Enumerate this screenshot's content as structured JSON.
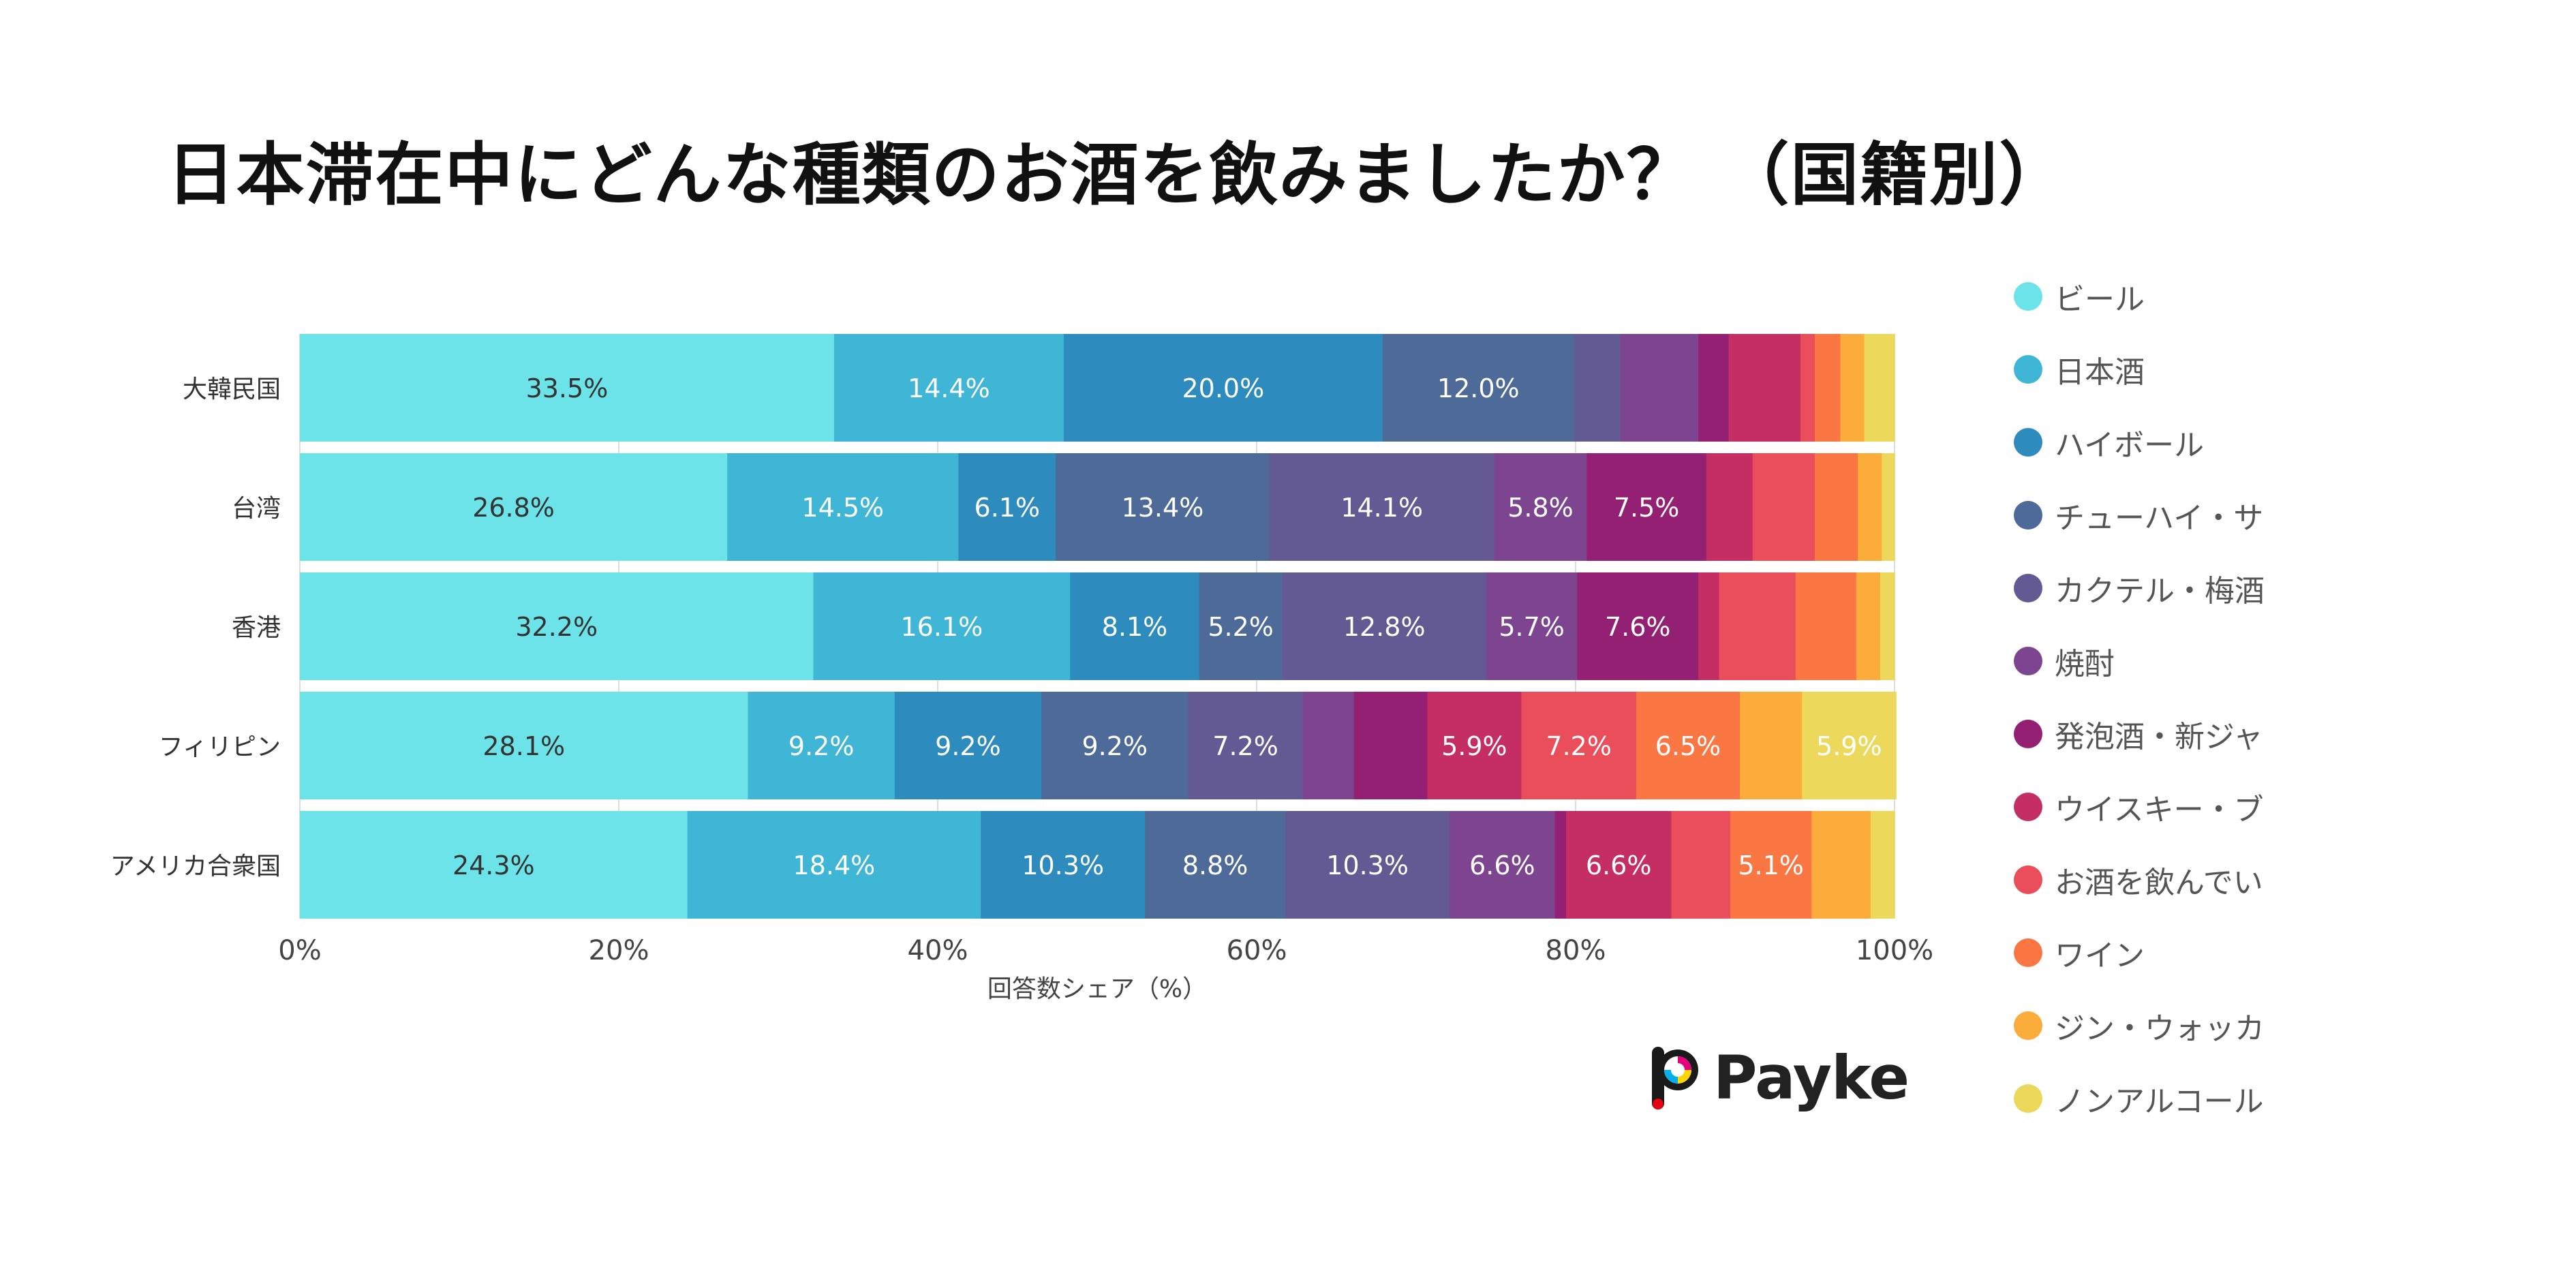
{
  "title": "日本滞在中にどんな種類のお酒を飲みましたか？ （国籍別）",
  "logo_text": "Payke",
  "chart_data": {
    "type": "bar",
    "orientation": "horizontal",
    "stacked": true,
    "title": "日本滞在中にどんな種類のお酒を飲みましたか？ （国籍別）",
    "xlabel": "回答数シェア（%）",
    "ylabel": "",
    "xlim": [
      0,
      100
    ],
    "xticks": [
      "0%",
      "20%",
      "40%",
      "60%",
      "80%",
      "100%"
    ],
    "grid": true,
    "legend_position": "right",
    "categories": [
      "大韓民国",
      "台湾",
      "香港",
      "フィリピン",
      "アメリカ合衆国"
    ],
    "series": [
      {
        "name": "ビール",
        "color": "#6ce3e8",
        "values": [
          33.5,
          26.8,
          32.2,
          28.1,
          24.3
        ]
      },
      {
        "name": "日本酒",
        "color": "#40b6d6",
        "values": [
          14.4,
          14.5,
          16.1,
          9.2,
          18.4
        ]
      },
      {
        "name": "ハイボール",
        "color": "#2e8bbd",
        "values": [
          20.0,
          6.1,
          8.1,
          9.2,
          10.3
        ]
      },
      {
        "name": "チューハイ・サ",
        "color": "#4d6a98",
        "values": [
          12.0,
          13.4,
          5.2,
          9.2,
          8.8
        ]
      },
      {
        "name": "カクテル・梅酒",
        "color": "#635a94",
        "values": [
          2.9,
          14.1,
          12.8,
          7.2,
          10.3
        ]
      },
      {
        "name": "焼酎",
        "color": "#7d4590",
        "values": [
          4.9,
          5.8,
          5.7,
          3.2,
          6.6
        ]
      },
      {
        "name": "発泡酒・新ジャ",
        "color": "#942074",
        "values": [
          1.9,
          7.5,
          7.6,
          4.6,
          0.7
        ]
      },
      {
        "name": "ウイスキー・ブ",
        "color": "#c42e62",
        "values": [
          4.5,
          2.9,
          1.3,
          5.9,
          6.6
        ]
      },
      {
        "name": "お酒を飲んでい",
        "color": "#ea4e5a",
        "values": [
          0.9,
          3.9,
          4.8,
          7.2,
          3.7
        ]
      },
      {
        "name": "ワイン",
        "color": "#fa7744",
        "values": [
          1.6,
          2.7,
          3.8,
          6.5,
          5.1
        ]
      },
      {
        "name": "ジン・ウォッカ",
        "color": "#fbac3a",
        "values": [
          1.5,
          1.5,
          1.5,
          3.9,
          3.7
        ]
      },
      {
        "name": "ノンアルコール",
        "color": "#ecd85a",
        "values": [
          1.9,
          0.8,
          0.9,
          5.9,
          1.5
        ]
      }
    ],
    "data_labels": [
      [
        "33.5%",
        "14.4%",
        "20.0%",
        "12.0%",
        "",
        "",
        "",
        "",
        "",
        "",
        "",
        ""
      ],
      [
        "26.8%",
        "14.5%",
        "6.1%",
        "13.4%",
        "14.1%",
        "5.8%",
        "7.5%",
        "",
        "",
        "",
        "",
        ""
      ],
      [
        "32.2%",
        "16.1%",
        "8.1%",
        "5.2%",
        "12.8%",
        "5.7%",
        "7.6%",
        "",
        "",
        "",
        "",
        ""
      ],
      [
        "28.1%",
        "9.2%",
        "9.2%",
        "9.2%",
        "7.2%",
        "",
        "",
        "5.9%",
        "7.2%",
        "6.5%",
        "",
        "5.9%"
      ],
      [
        "24.3%",
        "18.4%",
        "10.3%",
        "8.8%",
        "10.3%",
        "6.6%",
        "",
        "6.6%",
        "",
        "5.1%",
        "",
        ""
      ]
    ]
  }
}
